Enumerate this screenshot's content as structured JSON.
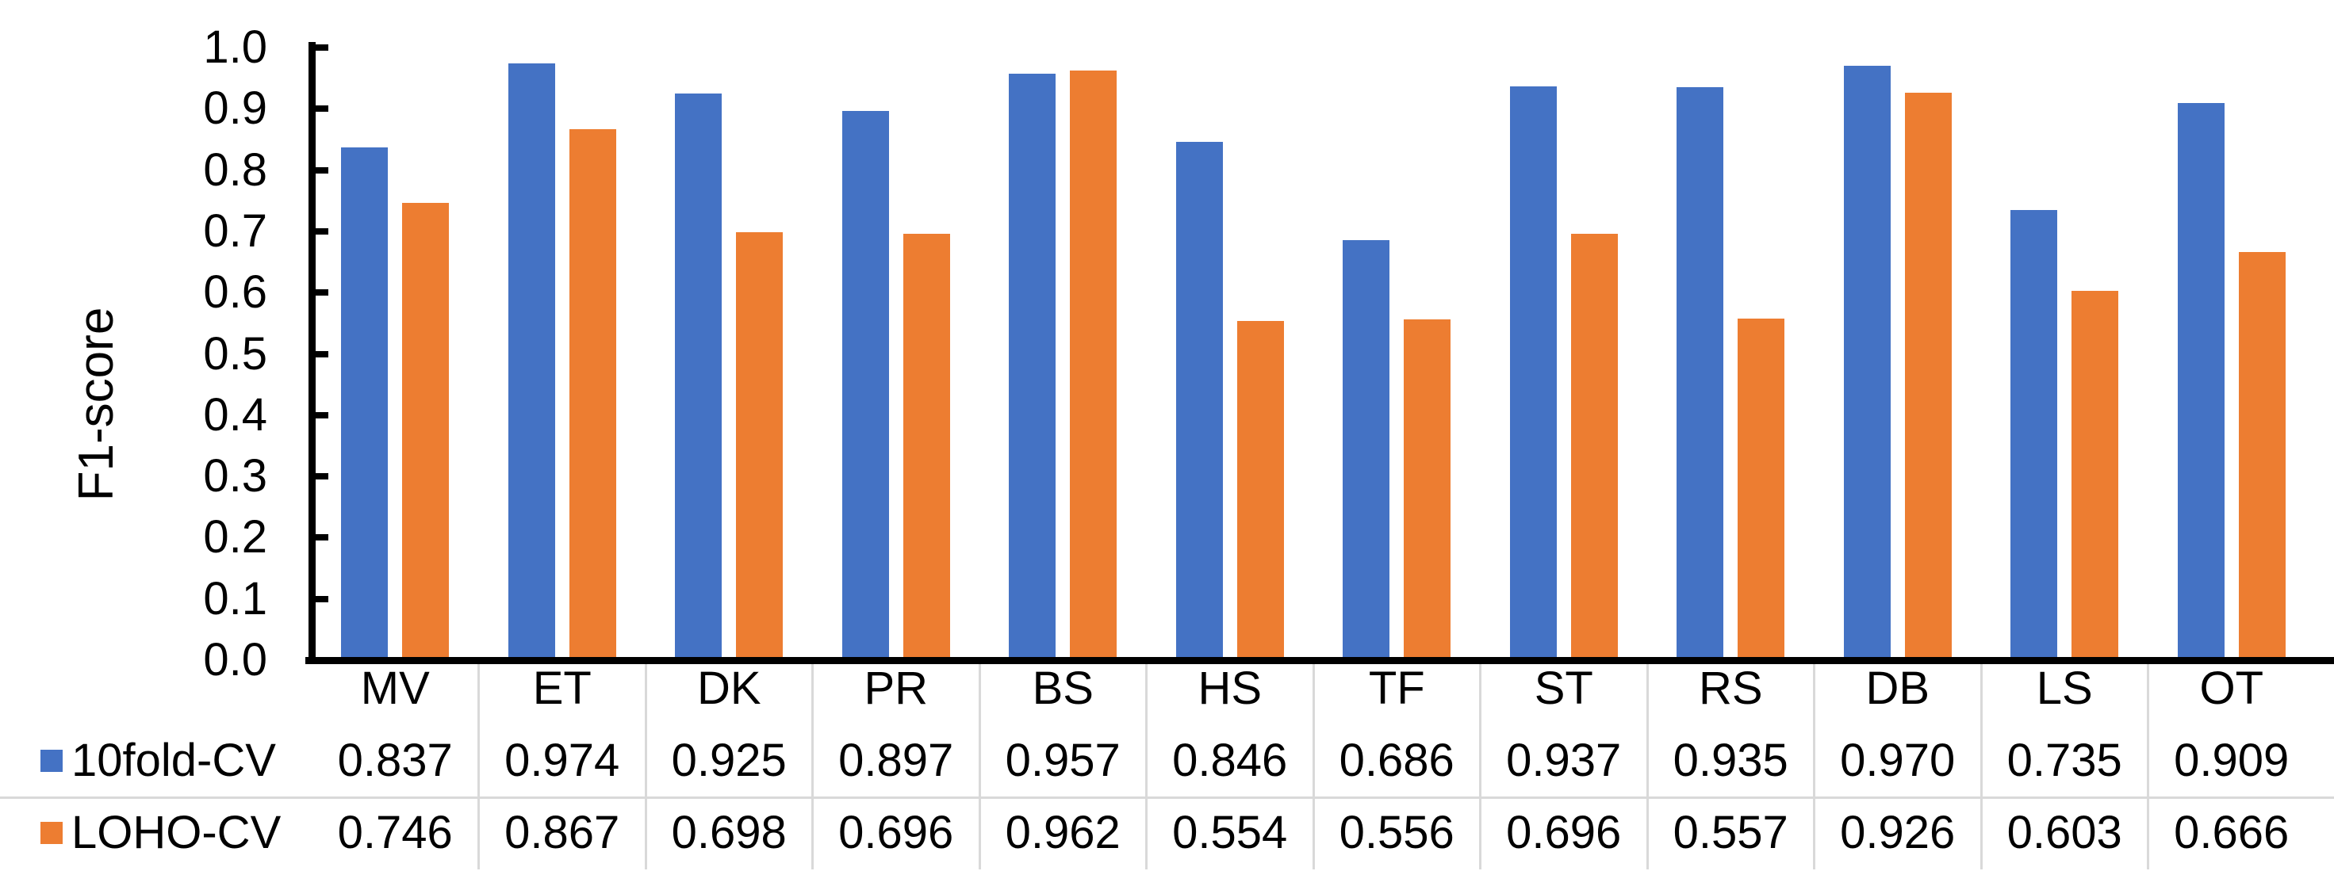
{
  "chart_data": {
    "type": "bar",
    "title": "",
    "ylabel": "F1-score",
    "xlabel": "",
    "ylim": [
      0.0,
      1.0
    ],
    "ytick_step": 0.1,
    "ytick_labels": [
      "0.0",
      "0.1",
      "0.2",
      "0.3",
      "0.4",
      "0.5",
      "0.6",
      "0.7",
      "0.8",
      "0.9",
      "1.0"
    ],
    "grid": false,
    "legend_position": "data-table-left",
    "data_table_below_axis": true,
    "categories": [
      "MV",
      "ET",
      "DK",
      "PR",
      "BS",
      "HS",
      "TF",
      "ST",
      "RS",
      "DB",
      "LS",
      "OT"
    ],
    "series": [
      {
        "name": "10fold-CV",
        "color": "#4472C4",
        "values": [
          0.837,
          0.974,
          0.925,
          0.897,
          0.957,
          0.846,
          0.686,
          0.937,
          0.935,
          0.97,
          0.735,
          0.909
        ]
      },
      {
        "name": "LOHO-CV",
        "color": "#ED7D31",
        "values": [
          0.746,
          0.867,
          0.698,
          0.696,
          0.962,
          0.554,
          0.556,
          0.696,
          0.557,
          0.926,
          0.603,
          0.666
        ]
      }
    ],
    "value_display_precision": 3,
    "axis_color": "#000000",
    "separator_color": "#D9D9D9"
  }
}
